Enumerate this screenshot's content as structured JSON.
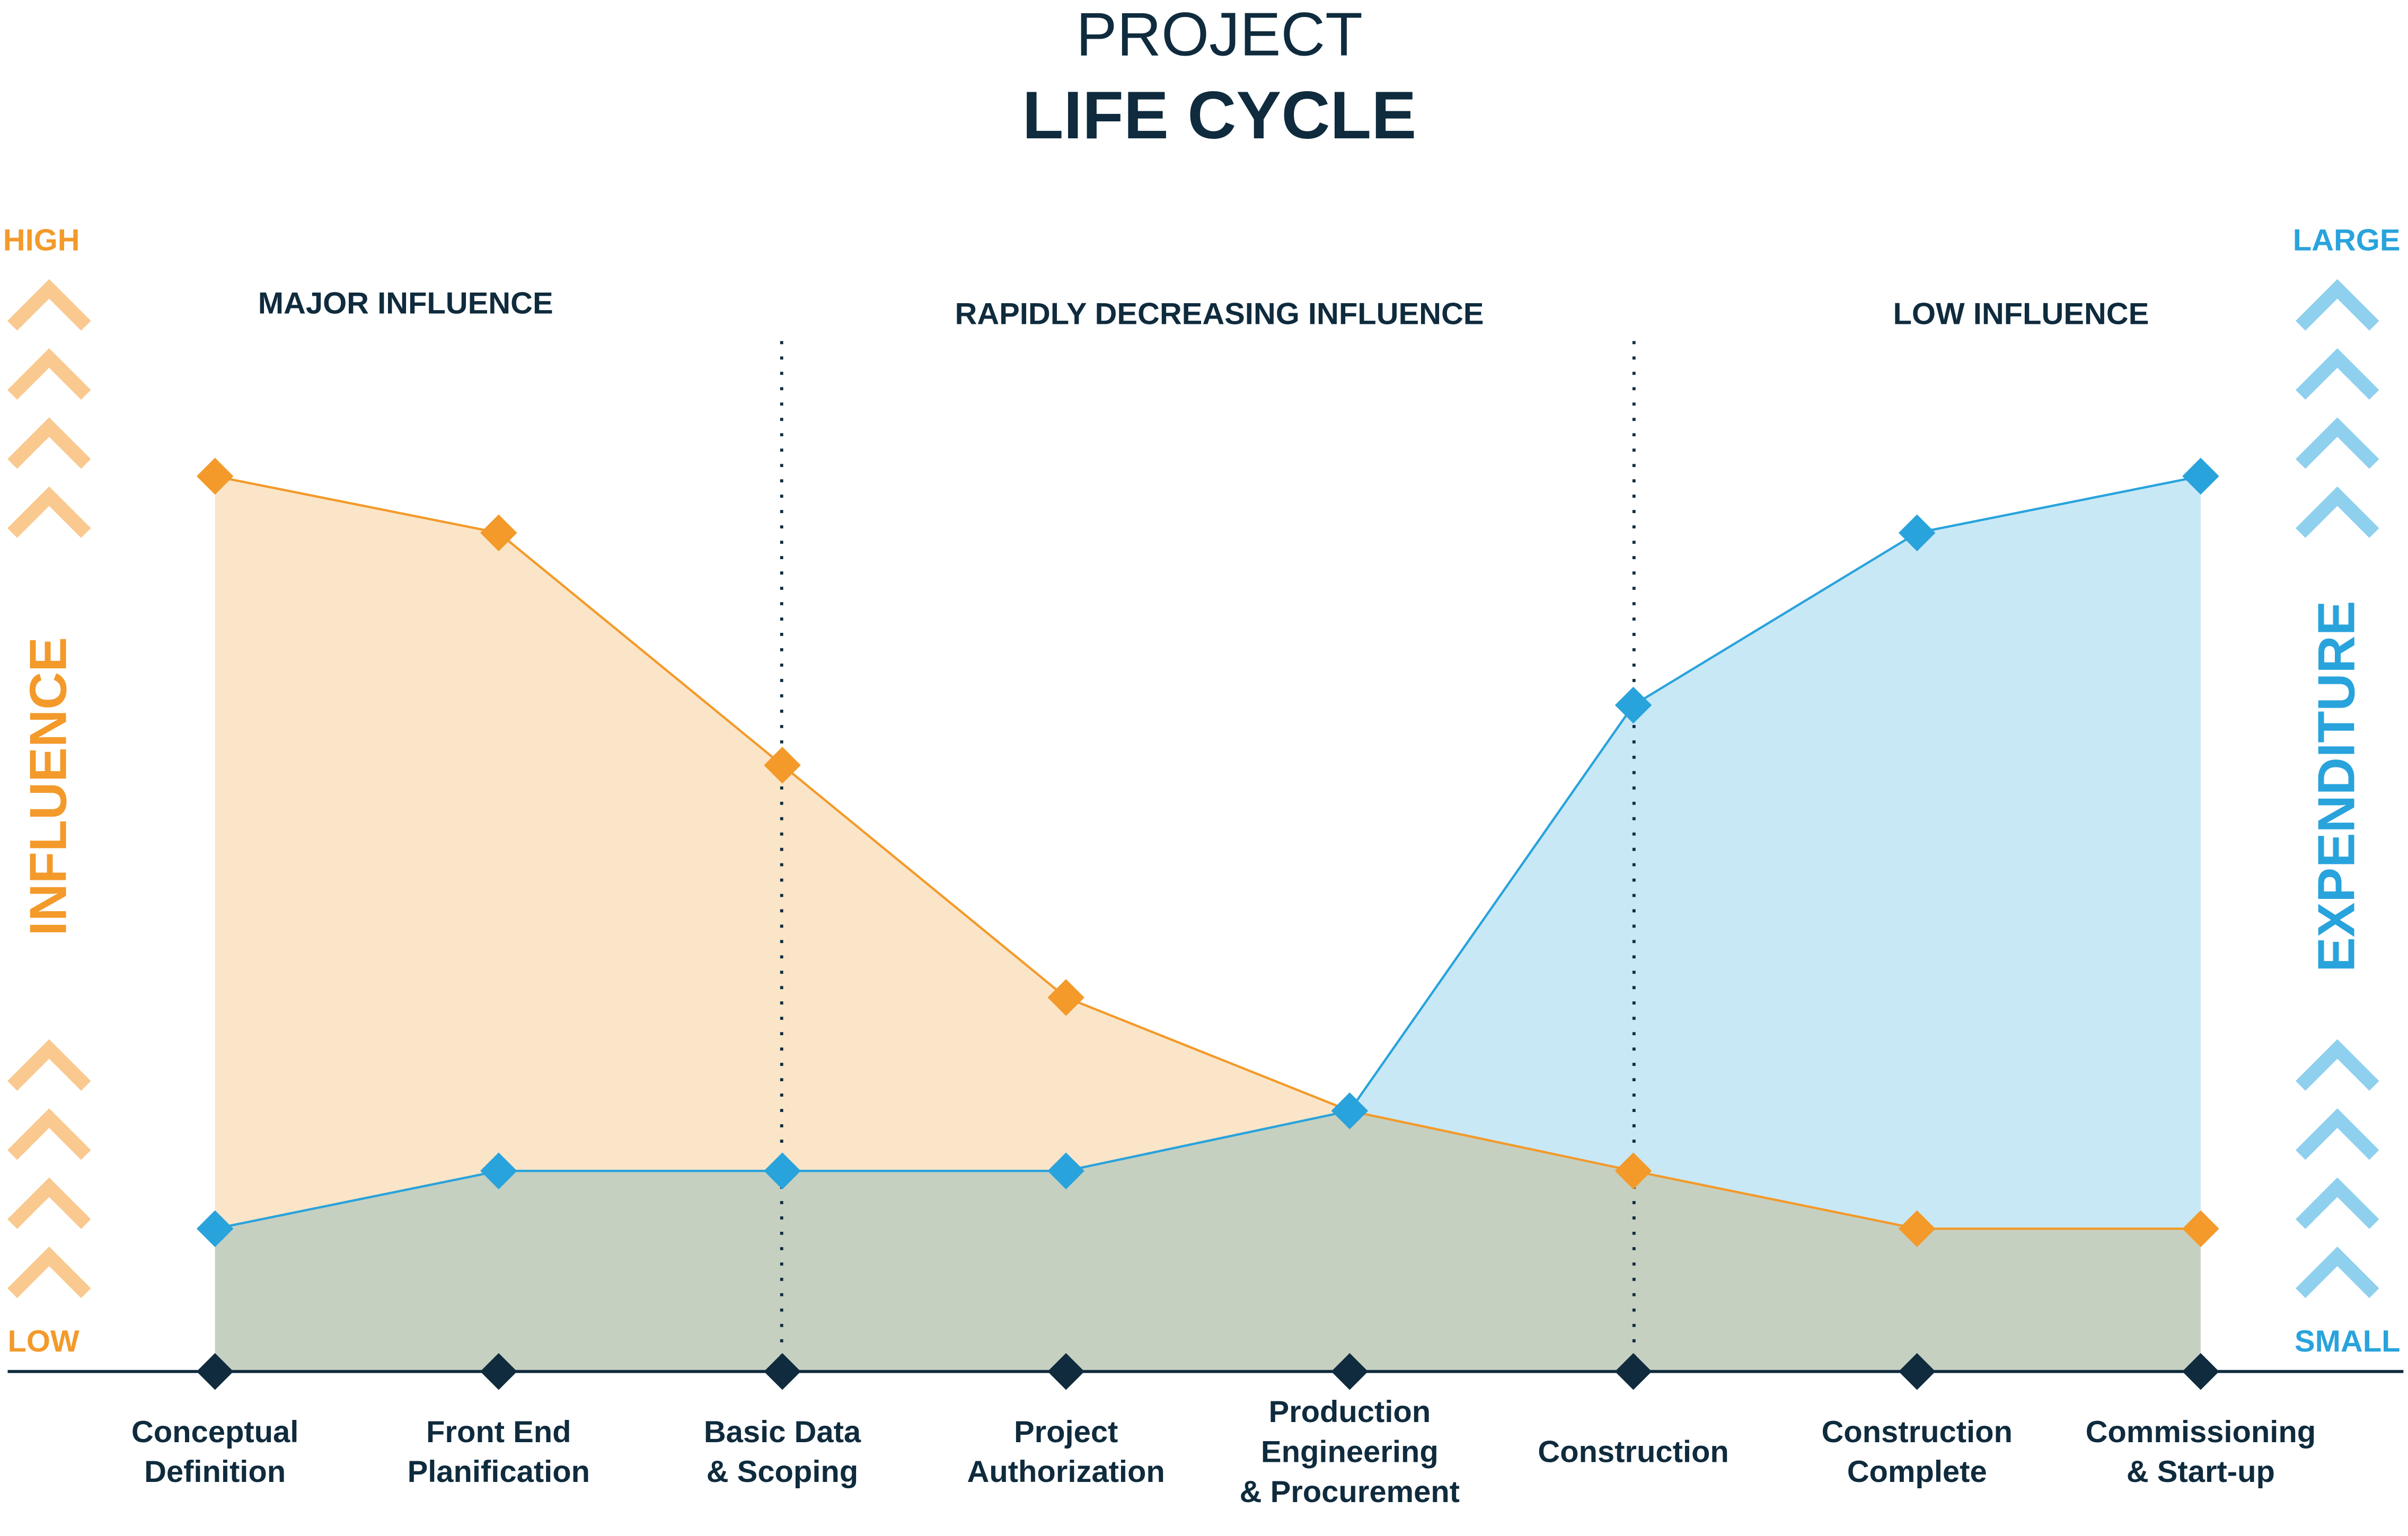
{
  "chart_data": {
    "type": "area",
    "title": "PROJECT",
    "subtitle": "LIFE CYCLE",
    "categories": [
      [
        "Conceptual",
        "Definition"
      ],
      [
        "Front End",
        "Planification"
      ],
      [
        "Basic Data",
        "& Scoping"
      ],
      [
        "Project",
        "Authorization"
      ],
      [
        "Production",
        "Engineering",
        "& Procurement"
      ],
      [
        "Construction"
      ],
      [
        "Construction",
        "Complete"
      ],
      [
        "Commissioning",
        "& Start-up"
      ]
    ],
    "series": [
      {
        "name": "INFLUENCE",
        "color": "#f39a2b",
        "fill": "#fbe5c8",
        "values": [
          79,
          74,
          53.5,
          33,
          23,
          17.7,
          12.6,
          12.6
        ]
      },
      {
        "name": "EXPENDITURE",
        "color": "#29a3dc",
        "fill": "#c9e8f6",
        "values": [
          12.6,
          17.7,
          17.7,
          17.7,
          23,
          58.8,
          74,
          79
        ]
      }
    ],
    "ylim": [
      0,
      100
    ],
    "y_labels": {
      "left_high": "HIGH",
      "left_low": "LOW",
      "right_high": "LARGE",
      "right_low": "SMALL"
    },
    "annotations": [
      "MAJOR INFLUENCE",
      "RAPIDLY DECREASING INFLUENCE",
      "LOW INFLUENCE"
    ]
  }
}
